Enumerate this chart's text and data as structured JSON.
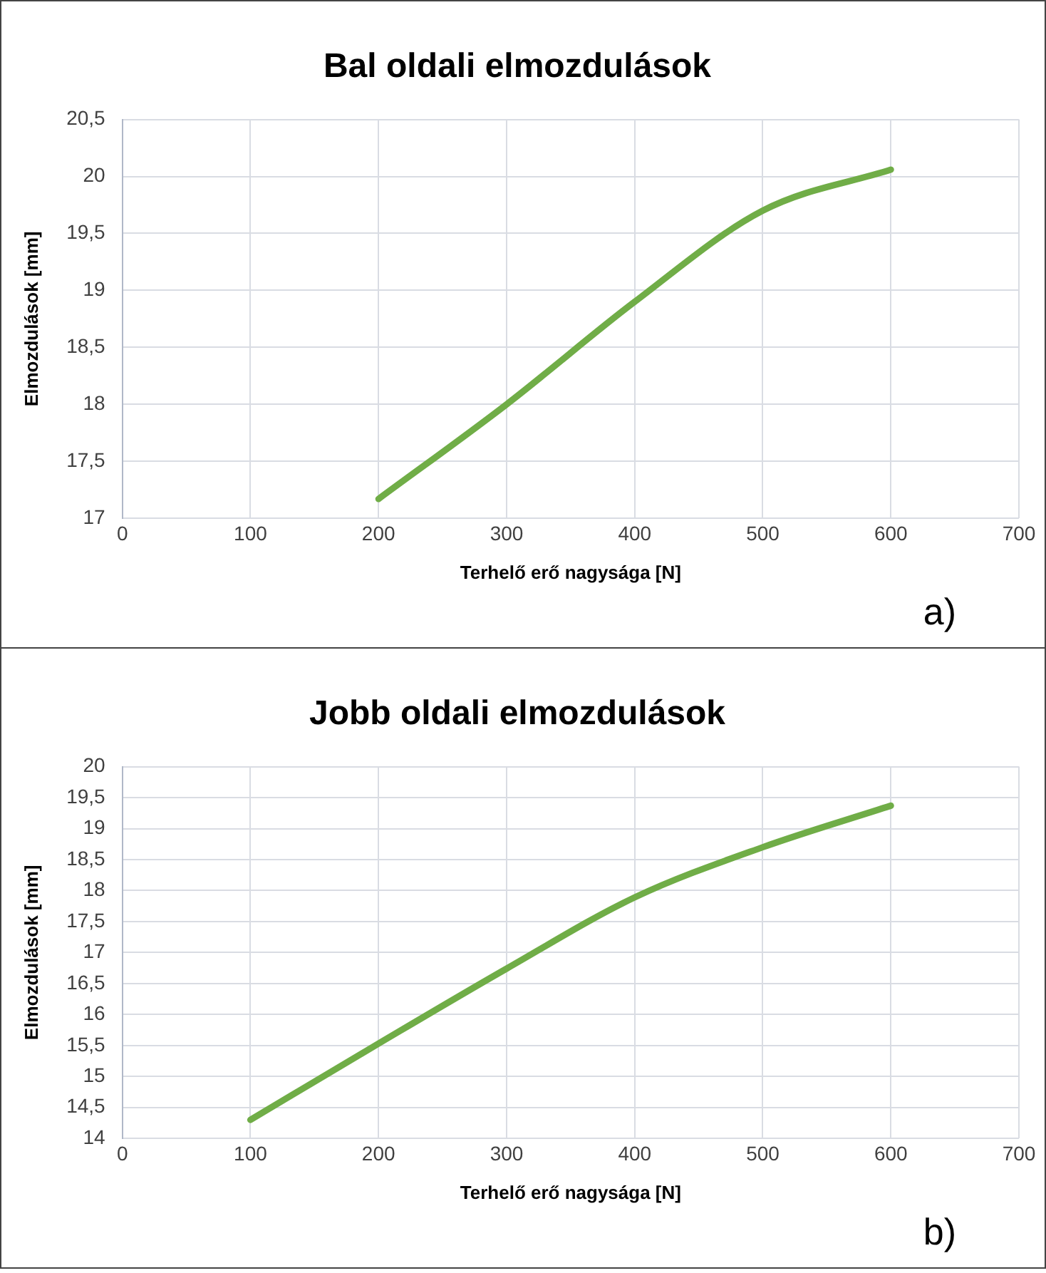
{
  "chart_data": [
    {
      "type": "line",
      "title": "Bal oldali elmozdulások",
      "xlabel": "Terhelő erő nagysága [N]",
      "ylabel": "Elmozdulások [mm]",
      "annotations": [
        "a)"
      ],
      "x": [
        200,
        300,
        400,
        500,
        600
      ],
      "series": [
        {
          "color": "#70ad47",
          "values": [
            17.17,
            18.0,
            18.9,
            19.7,
            20.06
          ]
        }
      ],
      "xlim": [
        0,
        700
      ],
      "xticks": [
        0,
        100,
        200,
        300,
        400,
        500,
        600,
        700
      ],
      "ylim": [
        17,
        20.5
      ],
      "yticks": [
        17,
        {
          "value": 17.5,
          "label": "17,5"
        },
        18,
        {
          "value": 18.5,
          "label": "18,5"
        },
        19,
        {
          "value": 19.5,
          "label": "19,5"
        },
        20,
        {
          "value": 20.5,
          "label": "20,5"
        }
      ],
      "grid": true,
      "legend": false,
      "marker": "none",
      "line_style": "solid"
    },
    {
      "type": "line",
      "title": "Jobb oldali elmozdulások",
      "xlabel": "Terhelő erő nagysága [N]",
      "ylabel": "Elmozdulások [mm]",
      "annotations": [
        "b)"
      ],
      "x": [
        100,
        200,
        300,
        400,
        500,
        600
      ],
      "series": [
        {
          "color": "#70ad47",
          "values": [
            14.3,
            15.53,
            16.74,
            17.89,
            18.7,
            19.37
          ]
        }
      ],
      "xlim": [
        0,
        700
      ],
      "xticks": [
        0,
        100,
        200,
        300,
        400,
        500,
        600,
        700
      ],
      "ylim": [
        14,
        20
      ],
      "yticks": [
        14,
        {
          "value": 14.5,
          "label": "14,5"
        },
        15,
        {
          "value": 15.5,
          "label": "15,5"
        },
        16,
        {
          "value": 16.5,
          "label": "16,5"
        },
        17,
        {
          "value": 17.5,
          "label": "17,5"
        },
        18,
        {
          "value": 18.5,
          "label": "18,5"
        },
        19,
        {
          "value": 19.5,
          "label": "19,5"
        },
        20
      ],
      "grid": true,
      "legend": false,
      "marker": "none",
      "line_style": "solid"
    }
  ]
}
